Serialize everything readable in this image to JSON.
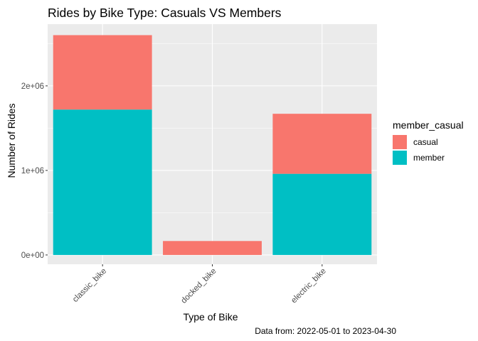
{
  "chart_data": {
    "type": "bar",
    "stacked": true,
    "title": "Rides by Bike Type: Casuals VS Members",
    "xlabel": "Type of Bike",
    "ylabel": "Number of Rides",
    "caption": "Data from: 2022-05-01 to 2023-04-30",
    "categories": [
      "classic_bike",
      "docked_bike",
      "electric_bike"
    ],
    "series": [
      {
        "name": "member",
        "values": [
          1720000,
          0,
          960000
        ],
        "color": "#00BFC4"
      },
      {
        "name": "casual",
        "values": [
          880000,
          165000,
          710000
        ],
        "color": "#F8766D"
      }
    ],
    "stack_order_top_to_bottom": [
      "casual",
      "member"
    ],
    "ylim": [
      -110000,
      2730000
    ],
    "y_ticks": [
      {
        "value": 0,
        "label": "0e+00"
      },
      {
        "value": 1000000,
        "label": "1e+06"
      },
      {
        "value": 2000000,
        "label": "2e+06"
      }
    ],
    "grid": true,
    "legend": {
      "title": "member_casual",
      "position": "right",
      "entries": [
        {
          "label": "casual",
          "color": "#F8766D"
        },
        {
          "label": "member",
          "color": "#00BFC4"
        }
      ]
    },
    "panel_background": "#EBEBEB",
    "grid_color": "#FFFFFF"
  }
}
